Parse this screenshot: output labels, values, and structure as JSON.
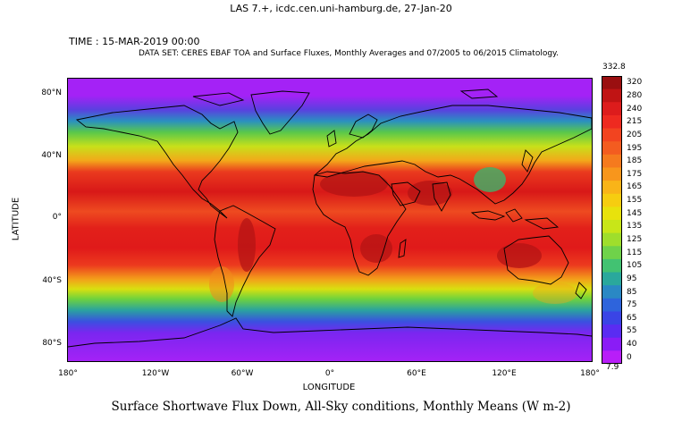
{
  "header": "LAS 7.+, icdc.cen.uni-hamburg.de, 27-Jan-20",
  "time_label": "TIME : 15-MAR-2019 00:00",
  "dataset_label": "DATA SET: CERES EBAF TOA and Surface Fluxes, Monthly Averages and 07/2005 to 06/2015 Climatology.",
  "plot_title": "Surface Shortwave Flux Down, All-Sky conditions, Monthly Means (W m-2)",
  "axes": {
    "xlabel": "LONGITUDE",
    "ylabel": "LATITUDE",
    "x_ticks": [
      "180°",
      "120°W",
      "60°W",
      "0°",
      "60°E",
      "120°E",
      "180°"
    ],
    "y_ticks": [
      "80°N",
      "40°N",
      "0°",
      "40°S",
      "80°S"
    ]
  },
  "colorbar": {
    "max_label": "332.8",
    "min_label": "7.9",
    "levels": [
      "320",
      "280",
      "240",
      "215",
      "205",
      "195",
      "185",
      "175",
      "165",
      "155",
      "145",
      "135",
      "125",
      "115",
      "105",
      "95",
      "85",
      "75",
      "65",
      "55",
      "40",
      "0"
    ],
    "colors": [
      "#9a0f10",
      "#c01414",
      "#dd1c1c",
      "#ee2a20",
      "#f24420",
      "#f35c20",
      "#f57a1e",
      "#f8961c",
      "#f9b418",
      "#f6cd10",
      "#e8e20c",
      "#c8e618",
      "#9fde2c",
      "#6fd24a",
      "#42c272",
      "#2aa89c",
      "#2a88c4",
      "#2e64dc",
      "#3a44e6",
      "#5a2cf2",
      "#8a1cf6",
      "#b81ef8"
    ]
  },
  "map": {
    "lat_range": [
      -90,
      90
    ],
    "lon_range": [
      -180,
      180
    ],
    "band_colors": {
      "polar": "#a422f6",
      "subpolar": "#6a3ae8",
      "midlat_green": "#7ad23a",
      "midlat_yellow": "#e8e010",
      "subtropic_orange": "#f06a1c",
      "tropic_red": "#e01a1a",
      "desert_darkred": "#b01414"
    }
  }
}
